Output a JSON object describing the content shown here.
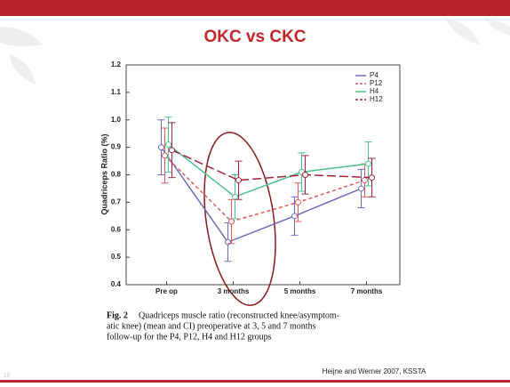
{
  "slide_title": "OKC vs CKC",
  "chart_data": {
    "type": "line",
    "ylabel": "Quadriceps Ratio (%)",
    "categories": [
      "Pre op",
      "3 months",
      "5 months",
      "7 months"
    ],
    "ylim": [
      0.4,
      1.2
    ],
    "yticks": [
      0.4,
      0.5,
      0.6,
      0.7,
      0.8,
      0.9,
      {
        "value": 1,
        "label": "1.0"
      },
      1.1,
      1.2
    ],
    "legend": "upper right",
    "series": [
      {
        "name": "P4",
        "color": "#6b6bbd",
        "dash": false,
        "values": [
          0.9,
          0.555,
          0.65,
          0.75
        ],
        "errors": [
          0.1,
          0.07,
          0.07,
          0.07
        ]
      },
      {
        "name": "P12",
        "color": "#e05a5a",
        "dash": true,
        "values": [
          0.87,
          0.63,
          0.7,
          0.78
        ],
        "errors": [
          0.1,
          0.08,
          0.07,
          0.06
        ]
      },
      {
        "name": "H4",
        "color": "#4cc28c",
        "dash": false,
        "values": [
          0.91,
          0.72,
          0.81,
          0.84
        ],
        "errors": [
          0.1,
          0.08,
          0.07,
          0.08
        ]
      },
      {
        "name": "H12",
        "color": "#a3233c",
        "dash": true,
        "values": [
          0.89,
          0.78,
          0.8,
          0.79
        ],
        "errors": [
          0.1,
          0.07,
          0.07,
          0.07
        ]
      }
    ]
  },
  "caption": {
    "label": "Fig. 2",
    "lines": [
      "Quadriceps muscle ratio (reconstructed knee/asymptom-",
      "atic knee) (mean and CI) preoperative at 3, 5 and 7 months",
      "follow-up for the P4, P12, H4 and H12 groups"
    ]
  },
  "citation": "Heijne and Werner 2007, KSSTA",
  "slide_number": "13"
}
